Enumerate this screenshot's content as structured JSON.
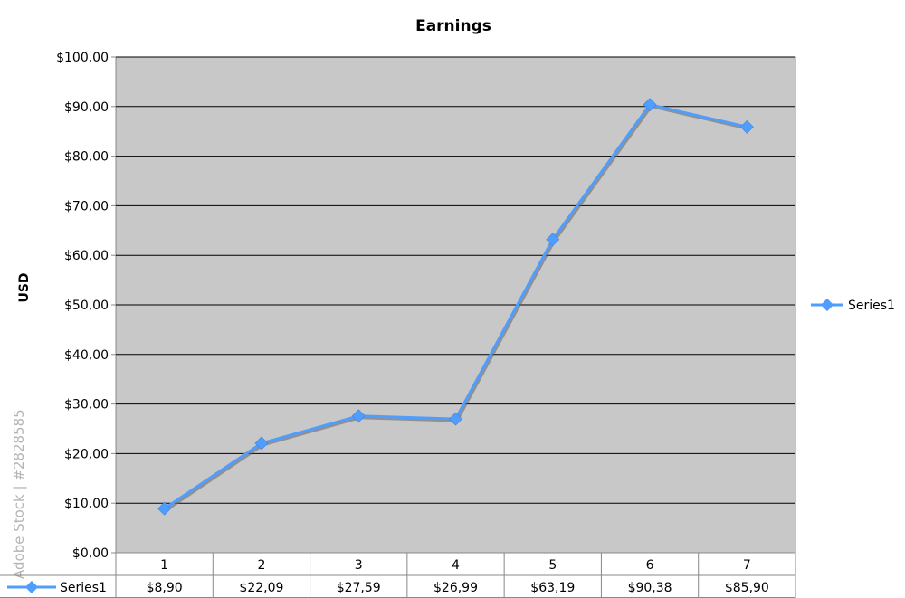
{
  "chart_data": {
    "type": "line",
    "title": "Earnings",
    "xlabel": "",
    "ylabel": "USD",
    "categories": [
      "1",
      "2",
      "3",
      "4",
      "5",
      "6",
      "7"
    ],
    "series": [
      {
        "name": "Series1",
        "values": [
          8.9,
          22.09,
          27.59,
          26.99,
          63.19,
          90.38,
          85.9
        ],
        "value_labels": [
          "$8,90",
          "$22,09",
          "$27,59",
          "$26,99",
          "$63,19",
          "$90,38",
          "$85,90"
        ],
        "color": "#4f9dff"
      }
    ],
    "ylim": [
      0,
      100
    ],
    "yticks": [
      0,
      10,
      20,
      30,
      40,
      50,
      60,
      70,
      80,
      90,
      100
    ],
    "ytick_labels": [
      "$0,00",
      "$10,00",
      "$20,00",
      "$30,00",
      "$40,00",
      "$50,00",
      "$60,00",
      "$70,00",
      "$80,00",
      "$90,00",
      "$100,00"
    ],
    "grid": true,
    "legend": "right",
    "data_table": true,
    "plot_background": "#c8c8c8"
  },
  "watermark": "Adobe Stock | #2828585"
}
